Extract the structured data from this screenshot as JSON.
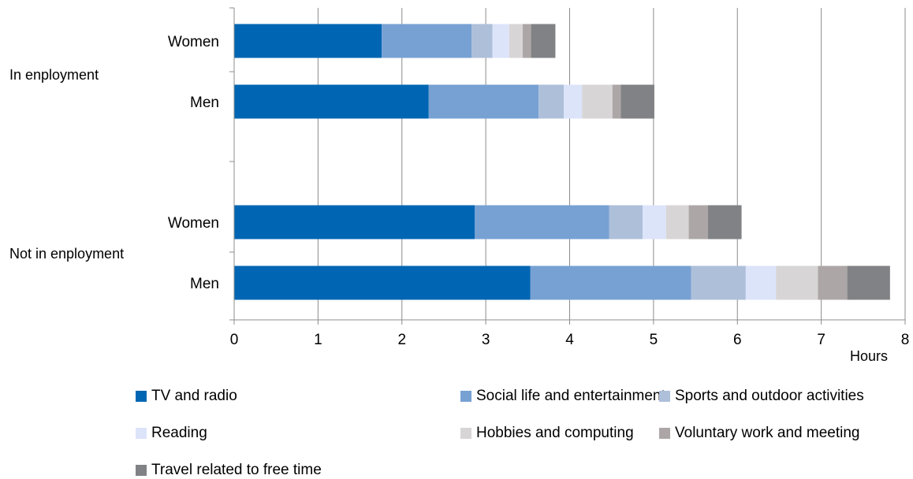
{
  "chart_data": {
    "type": "bar",
    "orientation": "horizontal",
    "stacked": true,
    "xlabel": "Hours",
    "ylabel": "",
    "xlim": [
      0,
      8
    ],
    "x_ticks": [
      "0",
      "1",
      "2",
      "3",
      "4",
      "5",
      "6",
      "7",
      "8"
    ],
    "grid": "vertical",
    "legend_position": "bottom",
    "groups": [
      {
        "label": "In enployment",
        "categories": [
          "Women",
          "Men"
        ]
      },
      {
        "label": "Not in enployment",
        "categories": [
          "Women",
          "Men"
        ]
      }
    ],
    "series": [
      {
        "name": "TV and radio",
        "color": "#0066b3",
        "values": [
          1.76,
          2.32,
          2.87,
          3.53
        ]
      },
      {
        "name": "Social life and entertainment",
        "color": "#77a1d3",
        "values": [
          1.07,
          1.31,
          1.6,
          1.92
        ]
      },
      {
        "name": "Sports and outdoor activities",
        "color": "#aebfda",
        "values": [
          0.25,
          0.3,
          0.4,
          0.65
        ]
      },
      {
        "name": "Reading",
        "color": "#dce4fa",
        "values": [
          0.2,
          0.22,
          0.28,
          0.36
        ]
      },
      {
        "name": "Hobbies and computing",
        "color": "#d8d5d6",
        "values": [
          0.16,
          0.36,
          0.27,
          0.5
        ]
      },
      {
        "name": "Voluntary work and meeting",
        "color": "#ada6a7",
        "values": [
          0.1,
          0.1,
          0.23,
          0.35
        ]
      },
      {
        "name": "Travel related to free time",
        "color": "#808285",
        "values": [
          0.29,
          0.4,
          0.4,
          0.51
        ]
      }
    ]
  }
}
